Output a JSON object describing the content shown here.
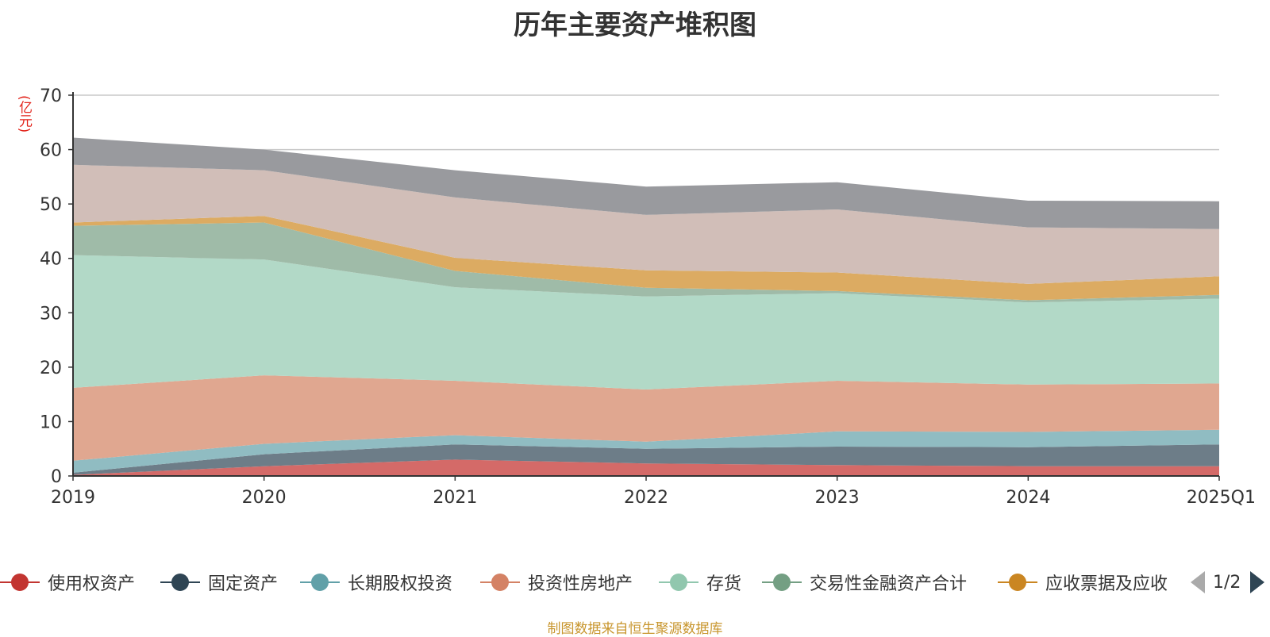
{
  "title": "历年主要资产堆积图",
  "unit_label": "(亿元)",
  "source_note": "制图数据来自恒生聚源数据库",
  "legend_page": "1/2",
  "chart_data": {
    "type": "area",
    "stacked": true,
    "categories": [
      "2019",
      "2020",
      "2021",
      "2022",
      "2023",
      "2024",
      "2025Q1"
    ],
    "ylim": [
      0,
      70
    ],
    "yticks": [
      0,
      10,
      20,
      30,
      40,
      50,
      60,
      70
    ],
    "grid": true,
    "legend_position": "bottom",
    "series": [
      {
        "name": "使用权资产",
        "color": "#c23531",
        "fill": "#d46a68",
        "values": [
          0.2,
          1.8,
          3.0,
          2.3,
          2.0,
          1.8,
          1.8
        ]
      },
      {
        "name": "固定资产",
        "color": "#2f4554",
        "fill": "#6d7d88",
        "values": [
          0.4,
          2.2,
          2.8,
          2.7,
          3.4,
          3.5,
          4.0
        ]
      },
      {
        "name": "长期股权投资",
        "color": "#61a0a8",
        "fill": "#90bcc2",
        "values": [
          2.2,
          1.9,
          1.7,
          1.3,
          2.8,
          2.8,
          2.7
        ]
      },
      {
        "name": "投资性房地产",
        "color": "#d48265",
        "fill": "#e0a790",
        "values": [
          13.4,
          12.6,
          10.0,
          9.6,
          9.3,
          8.7,
          8.5
        ]
      },
      {
        "name": "存货",
        "color": "#91c7ae",
        "fill": "#b2d9c7",
        "values": [
          24.4,
          21.3,
          17.2,
          17.1,
          16.1,
          15.1,
          15.6
        ]
      },
      {
        "name": "交易性金融资产合计",
        "color": "#749f83",
        "fill": "#9fbba8",
        "values": [
          5.4,
          6.8,
          3.0,
          1.6,
          0.4,
          0.4,
          0.7
        ]
      },
      {
        "name": "应收票据及应收",
        "color": "#ca8622",
        "fill": "#dcab62",
        "values": [
          0.6,
          1.2,
          2.4,
          3.2,
          3.4,
          3.0,
          3.4
        ]
      },
      {
        "name": "",
        "color": "#bda29a",
        "fill": "#d1beb8",
        "values": [
          10.6,
          8.4,
          11.1,
          10.2,
          11.6,
          10.4,
          8.7
        ]
      },
      {
        "name": "",
        "color": "#6e7074",
        "fill": "#999a9e",
        "values": [
          5.0,
          3.8,
          5.0,
          5.2,
          5.0,
          4.9,
          5.1
        ]
      }
    ]
  }
}
